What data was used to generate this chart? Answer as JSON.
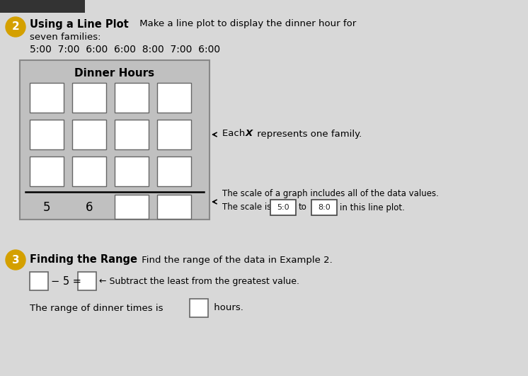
{
  "page_bg": "#d8d8d8",
  "plot_bg": "#c0c0c0",
  "plot_border": "#888888",
  "box_bg": "#ffffff",
  "box_border": "#666666",
  "circle2_color": "#d4a000",
  "circle3_color": "#d4a000",
  "plot_title": "Dinner Hours",
  "data_values": "5:00  7:00  6:00  6:00  8:00  7:00  6:00",
  "scale_box1": "5:0",
  "scale_box2": "8:0",
  "grid_rows": 3,
  "grid_cols": 4
}
